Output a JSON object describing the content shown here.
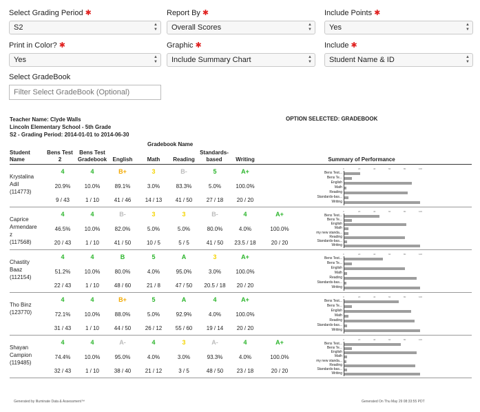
{
  "controls": {
    "grading_period": {
      "label": "Select Grading Period",
      "value": "S2"
    },
    "report_by": {
      "label": "Report By",
      "value": "Overall Scores"
    },
    "include_points": {
      "label": "Include Points",
      "value": "Yes"
    },
    "print_color": {
      "label": "Print in Color?",
      "value": "Yes"
    },
    "graphic": {
      "label": "Graphic",
      "value": "Include Summary Chart"
    },
    "include": {
      "label": "Include",
      "value": "Student Name & ID"
    },
    "gradebook": {
      "label": "Select GradeBook",
      "placeholder": "Filter Select GradeBook (Optional)"
    },
    "required_mark": "✱"
  },
  "report": {
    "teacher": "Teacher Name: Clyde Walls",
    "school": "Lincoln Elementary School - 5th Grade",
    "period": "S2 - Grading Period: 2014-01-01 to 2014-06-30",
    "option_selected": "OPTION SELECTED: GRADEBOOK",
    "gradebook_name_label": "Gradebook Name",
    "summary_label": "Summary of Performance",
    "columns": {
      "student": [
        "Student",
        "Name"
      ],
      "c1": [
        "Bens Test",
        "2"
      ],
      "c2": [
        "Bens Test",
        "Gradebook"
      ],
      "c3": [
        "",
        "English"
      ],
      "c4": [
        "",
        "Math"
      ],
      "c5": [
        "",
        "Reading"
      ],
      "c6": [
        "Standards-",
        "based"
      ],
      "c7": [
        "",
        "Writing"
      ]
    },
    "axis_ticks": [
      "0",
      "20",
      "40",
      "60",
      "80",
      "100"
    ]
  },
  "colors": {
    "green": "#2bb52b",
    "yellow": "#f5d400",
    "orange": "#f2a900",
    "grey": "#bbbbbb"
  },
  "students": [
    {
      "name": [
        "Krystalina",
        "Adil",
        "(114773)"
      ],
      "cells": [
        {
          "g": "4",
          "c": "green",
          "p": "20.9%",
          "r": "9 / 43"
        },
        {
          "g": "4",
          "c": "green",
          "p": "10.0%",
          "r": "1 / 10"
        },
        {
          "g": "B+",
          "c": "orange",
          "p": "89.1%",
          "r": "41 / 46"
        },
        {
          "g": "3",
          "c": "yellow",
          "p": "3.0%",
          "r": "14 / 13"
        },
        {
          "g": "B-",
          "c": "grey",
          "p": "83.3%",
          "r": "41 / 50"
        },
        {
          "g": "5",
          "c": "green",
          "p": "5.0%",
          "r": "27 / 18"
        },
        {
          "g": "A+",
          "c": "green",
          "p": "100.0%",
          "r": "20 / 20"
        }
      ],
      "chart": [
        {
          "label": "Bens Test...",
          "value": 20.9
        },
        {
          "label": "Bens Te...",
          "value": 10
        },
        {
          "label": "English",
          "value": 89.1
        },
        {
          "label": "Math",
          "value": 3
        },
        {
          "label": "Reading",
          "value": 83.3
        },
        {
          "label": "Standards-bas...",
          "value": 5
        },
        {
          "label": "Writing",
          "value": 100
        }
      ]
    },
    {
      "name": [
        "Caprice",
        "Armendare",
        "z",
        "(117568)"
      ],
      "cells": [
        {
          "g": "4",
          "c": "green",
          "p": "46.5%",
          "r": "20 / 43"
        },
        {
          "g": "4",
          "c": "green",
          "p": "10.0%",
          "r": "1 / 10"
        },
        {
          "g": "B-",
          "c": "grey",
          "p": "82.0%",
          "r": "41 / 50"
        },
        {
          "g": "3",
          "c": "yellow",
          "p": "5.0%",
          "r": "10 / 5"
        },
        {
          "g": "3",
          "c": "yellow",
          "p": "5.0%",
          "r": "5 / 5"
        },
        {
          "g": "B-",
          "c": "grey",
          "p": "80.0%",
          "r": "41 / 50"
        },
        {
          "g": "4",
          "c": "green",
          "p": "4.0%",
          "r": "23.5 / 18"
        },
        {
          "g": "A+",
          "c": "green",
          "p": "100.0%",
          "r": "20 / 20"
        }
      ],
      "chart": [
        {
          "label": "Bens Test...",
          "value": 46.5
        },
        {
          "label": "Bens Te...",
          "value": 10
        },
        {
          "label": "English",
          "value": 82
        },
        {
          "label": "Math",
          "value": 5
        },
        {
          "label": "my new standa...",
          "value": 5
        },
        {
          "label": "Reading",
          "value": 80
        },
        {
          "label": "Standards-bas...",
          "value": 4
        },
        {
          "label": "Writing",
          "value": 100
        }
      ]
    },
    {
      "name": [
        "Chastity",
        "Baaz",
        "(112154)"
      ],
      "cells": [
        {
          "g": "4",
          "c": "green",
          "p": "51.2%",
          "r": "22 / 43"
        },
        {
          "g": "4",
          "c": "green",
          "p": "10.0%",
          "r": "1 / 10"
        },
        {
          "g": "B",
          "c": "green",
          "p": "80.0%",
          "r": "48 / 60"
        },
        {
          "g": "5",
          "c": "green",
          "p": "4.0%",
          "r": "21 / 8"
        },
        {
          "g": "A",
          "c": "green",
          "p": "95.0%",
          "r": "47 / 50"
        },
        {
          "g": "3",
          "c": "yellow",
          "p": "3.0%",
          "r": "20.5 / 18"
        },
        {
          "g": "A+",
          "c": "green",
          "p": "100.0%",
          "r": "20 / 20"
        }
      ],
      "chart": [
        {
          "label": "Bens Test...",
          "value": 51.2
        },
        {
          "label": "Bens Te...",
          "value": 10
        },
        {
          "label": "English",
          "value": 80
        },
        {
          "label": "Math",
          "value": 4
        },
        {
          "label": "Reading",
          "value": 95
        },
        {
          "label": "Standards-bas...",
          "value": 3
        },
        {
          "label": "Writing",
          "value": 100
        }
      ]
    },
    {
      "name": [
        "Tho Binz",
        "(123770)"
      ],
      "cells": [
        {
          "g": "4",
          "c": "green",
          "p": "72.1%",
          "r": "31 / 43"
        },
        {
          "g": "4",
          "c": "green",
          "p": "10.0%",
          "r": "1 / 10"
        },
        {
          "g": "B+",
          "c": "orange",
          "p": "88.0%",
          "r": "44 / 50"
        },
        {
          "g": "5",
          "c": "green",
          "p": "5.0%",
          "r": "26 / 12"
        },
        {
          "g": "A",
          "c": "green",
          "p": "92.9%",
          "r": "55 / 60"
        },
        {
          "g": "4",
          "c": "green",
          "p": "4.0%",
          "r": "19 / 14"
        },
        {
          "g": "A+",
          "c": "green",
          "p": "100.0%",
          "r": "20 / 20"
        }
      ],
      "chart": [
        {
          "label": "Bens Test...",
          "value": 72.1
        },
        {
          "label": "Bens Te...",
          "value": 10
        },
        {
          "label": "English",
          "value": 88
        },
        {
          "label": "Math",
          "value": 5
        },
        {
          "label": "Reading",
          "value": 92.9
        },
        {
          "label": "Standards-bas...",
          "value": 4
        },
        {
          "label": "Writing",
          "value": 100
        }
      ]
    },
    {
      "name": [
        "Shayan",
        "Campion",
        "(119485)"
      ],
      "cells": [
        {
          "g": "4",
          "c": "green",
          "p": "74.4%",
          "r": "32 / 43"
        },
        {
          "g": "4",
          "c": "green",
          "p": "10.0%",
          "r": "1 / 10"
        },
        {
          "g": "A-",
          "c": "grey",
          "p": "95.0%",
          "r": "38 / 40"
        },
        {
          "g": "4",
          "c": "green",
          "p": "4.0%",
          "r": "21 / 12"
        },
        {
          "g": "3",
          "c": "yellow",
          "p": "3.0%",
          "r": "3 / 5"
        },
        {
          "g": "A-",
          "c": "grey",
          "p": "93.3%",
          "r": "48 / 50"
        },
        {
          "g": "4",
          "c": "green",
          "p": "4.0%",
          "r": "23 / 18"
        },
        {
          "g": "A+",
          "c": "green",
          "p": "100.0%",
          "r": "20 / 20"
        }
      ],
      "chart": [
        {
          "label": "Bens Test...",
          "value": 74.4
        },
        {
          "label": "Bens Te...",
          "value": 10
        },
        {
          "label": "English",
          "value": 95
        },
        {
          "label": "Math",
          "value": 4
        },
        {
          "label": "my new standa...",
          "value": 3
        },
        {
          "label": "Reading",
          "value": 93.3
        },
        {
          "label": "Standards-bas...",
          "value": 4
        },
        {
          "label": "Writing",
          "value": 100
        }
      ]
    }
  ],
  "footer": {
    "left": "Generated by Illuminate Data & Assessment™",
    "right": "Generated On Thu May 29 08:33:55 PDT"
  }
}
